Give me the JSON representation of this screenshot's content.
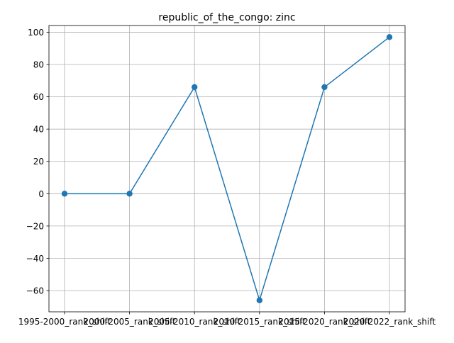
{
  "chart_data": {
    "type": "line",
    "title": "republic_of_the_congo: zinc",
    "xlabel": "",
    "ylabel": "",
    "categories": [
      "1995-2000_rank_shift",
      "2000-2005_rank_shift",
      "2005-2010_rank_shift",
      "2010-2015_rank_shift",
      "2015-2020_rank_shift",
      "2020-2022_rank_shift"
    ],
    "series": [
      {
        "values": [
          0,
          0,
          66,
          -66,
          66,
          97
        ],
        "color": "#1f77b4",
        "marker": "circle"
      }
    ],
    "ylim": [
      -73.15,
      104.15
    ],
    "yticks": [
      -60,
      -40,
      -20,
      0,
      20,
      40,
      60,
      80,
      100
    ],
    "ytick_labels": [
      "−60",
      "−40",
      "−20",
      "0",
      "20",
      "40",
      "60",
      "80",
      "100"
    ],
    "grid": true,
    "legend": "none"
  }
}
